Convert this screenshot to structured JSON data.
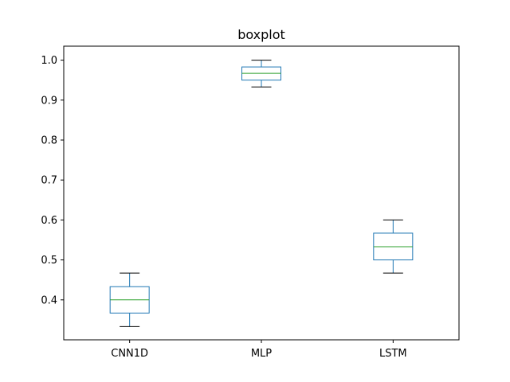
{
  "chart_data": {
    "type": "boxplot",
    "title": "boxplot",
    "xlabel": "",
    "ylabel": "",
    "categories": [
      "CNN1D",
      "MLP",
      "LSTM"
    ],
    "boxes": [
      {
        "category": "CNN1D",
        "whisker_low": 0.333,
        "q1": 0.367,
        "median": 0.4,
        "q3": 0.433,
        "whisker_high": 0.467
      },
      {
        "category": "MLP",
        "whisker_low": 0.933,
        "q1": 0.95,
        "median": 0.967,
        "q3": 0.983,
        "whisker_high": 1.0
      },
      {
        "category": "LSTM",
        "whisker_low": 0.467,
        "q1": 0.5,
        "median": 0.533,
        "q3": 0.567,
        "whisker_high": 0.6
      }
    ],
    "ylim": [
      0.3,
      1.035
    ],
    "yticks": [
      "0.4",
      "0.5",
      "0.6",
      "0.7",
      "0.8",
      "0.9",
      "1.0"
    ],
    "grid": false,
    "colors": {
      "box": "#1f77b4",
      "median": "#2ca02c",
      "whisker": "#1f77b4",
      "cap": "#000000"
    }
  }
}
